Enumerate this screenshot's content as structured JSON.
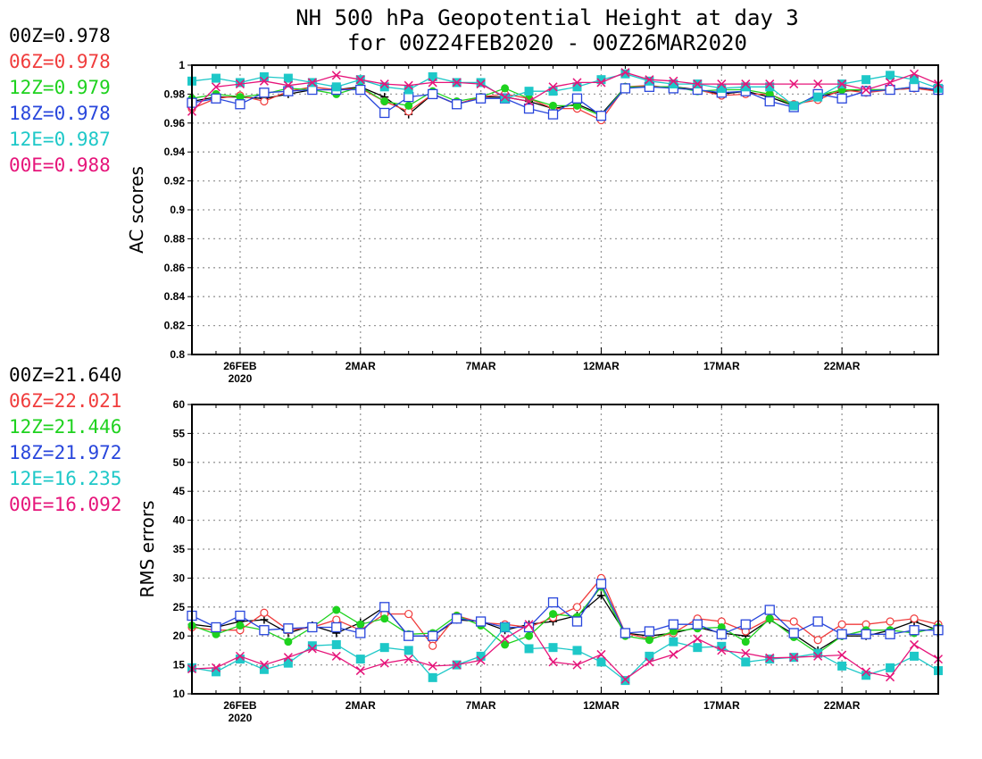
{
  "title": {
    "line1": "NH 500 hPa Geopotential Height at day 3",
    "line2": "for 00Z24FEB2020 - 00Z26MAR2020"
  },
  "series_styles": [
    {
      "name": "00Z",
      "color": "#000000",
      "marker": "plus"
    },
    {
      "name": "06Z",
      "color": "#f03c3c",
      "marker": "open-circle"
    },
    {
      "name": "12Z",
      "color": "#1ed21e",
      "marker": "filled-circle"
    },
    {
      "name": "18Z",
      "color": "#2846dc",
      "marker": "open-square"
    },
    {
      "name": "12E",
      "color": "#1ec8c8",
      "marker": "filled-square"
    },
    {
      "name": "00E",
      "color": "#e6147a",
      "marker": "cross"
    }
  ],
  "chart_data": [
    {
      "type": "line",
      "ylabel": "AC scores",
      "ylim": [
        0.8,
        1.0
      ],
      "yticks": [
        "0.8",
        "0.82",
        "0.84",
        "0.86",
        "0.88",
        "0.9",
        "0.92",
        "0.94",
        "0.96",
        "0.98",
        "1"
      ],
      "xlim": [
        0,
        31
      ],
      "xticks": [
        {
          "x": 2,
          "label": "26FEB",
          "sub": "2020"
        },
        {
          "x": 7,
          "label": "2MAR"
        },
        {
          "x": 12,
          "label": "7MAR"
        },
        {
          "x": 17,
          "label": "12MAR"
        },
        {
          "x": 22,
          "label": "17MAR"
        },
        {
          "x": 27,
          "label": "22MAR"
        }
      ],
      "grid": true,
      "stats_label": [
        "00Z=0.978",
        "06Z=0.978",
        "12Z=0.979",
        "18Z=0.978",
        "12E=0.987",
        "00E=0.988"
      ],
      "series": [
        {
          "name": "00Z",
          "values": [
            0.975,
            0.978,
            0.978,
            0.977,
            0.98,
            0.983,
            0.983,
            0.985,
            0.978,
            0.966,
            0.98,
            0.973,
            0.978,
            0.978,
            0.975,
            0.97,
            0.973,
            0.966,
            0.985,
            0.985,
            0.985,
            0.983,
            0.98,
            0.982,
            0.978,
            0.972,
            0.978,
            0.982,
            0.983,
            0.983,
            0.984,
            0.983
          ]
        },
        {
          "name": "06Z",
          "values": [
            0.97,
            0.977,
            0.979,
            0.975,
            0.982,
            0.985,
            0.983,
            0.984,
            0.975,
            0.968,
            0.98,
            0.973,
            0.978,
            0.98,
            0.977,
            0.97,
            0.97,
            0.962,
            0.985,
            0.986,
            0.984,
            0.983,
            0.979,
            0.98,
            0.98,
            0.973,
            0.976,
            0.983,
            0.981,
            0.983,
            0.984,
            0.982
          ]
        },
        {
          "name": "12Z",
          "values": [
            0.977,
            0.98,
            0.978,
            0.98,
            0.984,
            0.983,
            0.98,
            0.985,
            0.975,
            0.972,
            0.982,
            0.975,
            0.978,
            0.984,
            0.977,
            0.972,
            0.972,
            0.965,
            0.985,
            0.985,
            0.985,
            0.982,
            0.983,
            0.983,
            0.98,
            0.972,
            0.979,
            0.983,
            0.983,
            0.983,
            0.985,
            0.983
          ]
        },
        {
          "name": "18Z",
          "values": [
            0.974,
            0.977,
            0.973,
            0.981,
            0.982,
            0.983,
            0.983,
            0.983,
            0.967,
            0.978,
            0.98,
            0.973,
            0.977,
            0.977,
            0.97,
            0.966,
            0.977,
            0.965,
            0.984,
            0.985,
            0.984,
            0.983,
            0.981,
            0.982,
            0.975,
            0.971,
            0.98,
            0.977,
            0.982,
            0.983,
            0.985,
            0.983
          ]
        },
        {
          "name": "12E",
          "values": [
            0.989,
            0.991,
            0.988,
            0.992,
            0.991,
            0.988,
            0.985,
            0.99,
            0.985,
            0.983,
            0.992,
            0.988,
            0.988,
            0.977,
            0.982,
            0.982,
            0.985,
            0.99,
            0.994,
            0.989,
            0.987,
            0.987,
            0.984,
            0.985,
            0.985,
            0.972,
            0.978,
            0.987,
            0.99,
            0.993,
            0.99,
            0.984
          ]
        },
        {
          "name": "00E",
          "values": [
            0.968,
            0.985,
            0.987,
            0.989,
            0.986,
            0.988,
            0.993,
            0.99,
            0.987,
            0.986,
            0.988,
            0.988,
            0.987,
            0.978,
            0.975,
            0.985,
            0.988,
            0.988,
            0.995,
            0.99,
            0.989,
            0.987,
            0.987,
            0.987,
            0.987,
            0.987,
            0.987,
            0.987,
            0.983,
            0.988,
            0.994,
            0.987
          ]
        }
      ]
    },
    {
      "type": "line",
      "ylabel": "RMS errors",
      "ylim": [
        10,
        60
      ],
      "yticks": [
        "10",
        "15",
        "20",
        "25",
        "30",
        "35",
        "40",
        "45",
        "50",
        "55",
        "60"
      ],
      "xlim": [
        0,
        31
      ],
      "xticks": [
        {
          "x": 2,
          "label": "26FEB",
          "sub": "2020"
        },
        {
          "x": 7,
          "label": "2MAR"
        },
        {
          "x": 12,
          "label": "7MAR"
        },
        {
          "x": 17,
          "label": "12MAR"
        },
        {
          "x": 22,
          "label": "17MAR"
        },
        {
          "x": 27,
          "label": "22MAR"
        }
      ],
      "grid": true,
      "stats_label": [
        "00Z=21.640",
        "06Z=22.021",
        "12Z=21.446",
        "18Z=21.972",
        "12E=16.235",
        "00E=16.092"
      ],
      "series": [
        {
          "name": "00Z",
          "values": [
            22.0,
            21.5,
            22.5,
            22.8,
            20.5,
            21.8,
            20.5,
            22.3,
            25.0,
            20.0,
            20.0,
            22.8,
            22.5,
            21.0,
            22.0,
            22.5,
            23.5,
            27.0,
            20.5,
            20.0,
            20.5,
            21.5,
            20.5,
            20.0,
            22.8,
            20.3,
            17.5,
            20.0,
            20.0,
            21.0,
            22.5,
            21.0
          ]
        },
        {
          "name": "06Z",
          "values": [
            21.5,
            21.0,
            21.0,
            24.0,
            21.0,
            21.5,
            22.8,
            21.0,
            23.8,
            23.8,
            18.3,
            23.5,
            22.3,
            22.0,
            21.5,
            23.2,
            25.0,
            30.0,
            20.5,
            19.5,
            20.5,
            23.0,
            22.5,
            20.8,
            23.0,
            22.5,
            19.3,
            22.0,
            22.0,
            22.5,
            23.0,
            22.0
          ]
        },
        {
          "name": "12Z",
          "values": [
            21.8,
            20.3,
            21.8,
            21.0,
            19.0,
            21.5,
            24.5,
            22.0,
            23.0,
            20.3,
            20.5,
            23.5,
            21.8,
            18.5,
            20.0,
            23.8,
            23.3,
            28.5,
            20.0,
            19.3,
            20.8,
            21.3,
            21.5,
            19.0,
            23.0,
            19.8,
            17.0,
            20.0,
            21.0,
            21.0,
            20.5,
            21.5
          ]
        },
        {
          "name": "18Z",
          "values": [
            23.5,
            21.5,
            23.5,
            21.0,
            21.3,
            21.5,
            21.5,
            20.5,
            25.0,
            20.0,
            20.0,
            23.0,
            22.5,
            21.5,
            21.5,
            25.8,
            22.5,
            29.0,
            20.5,
            20.8,
            22.0,
            22.0,
            20.3,
            22.0,
            24.5,
            20.5,
            22.5,
            20.3,
            20.3,
            20.3,
            21.0,
            21.0
          ]
        },
        {
          "name": "12E",
          "values": [
            14.5,
            13.8,
            16.0,
            14.2,
            15.3,
            18.3,
            18.5,
            16.0,
            18.0,
            17.5,
            12.8,
            15.0,
            16.5,
            21.5,
            17.8,
            18.0,
            17.5,
            15.5,
            12.3,
            16.5,
            19.0,
            18.0,
            18.2,
            15.5,
            16.0,
            16.3,
            17.0,
            14.8,
            13.2,
            14.5,
            16.5,
            14.0
          ]
        },
        {
          "name": "00E",
          "values": [
            14.3,
            14.5,
            16.5,
            15.0,
            16.3,
            17.8,
            16.5,
            14.0,
            15.3,
            16.0,
            14.8,
            15.0,
            15.8,
            19.5,
            22.0,
            15.5,
            15.0,
            16.8,
            12.5,
            15.5,
            16.8,
            19.5,
            17.5,
            17.0,
            16.2,
            16.3,
            16.5,
            16.7,
            13.8,
            12.9,
            18.5,
            16.0
          ]
        }
      ]
    }
  ]
}
